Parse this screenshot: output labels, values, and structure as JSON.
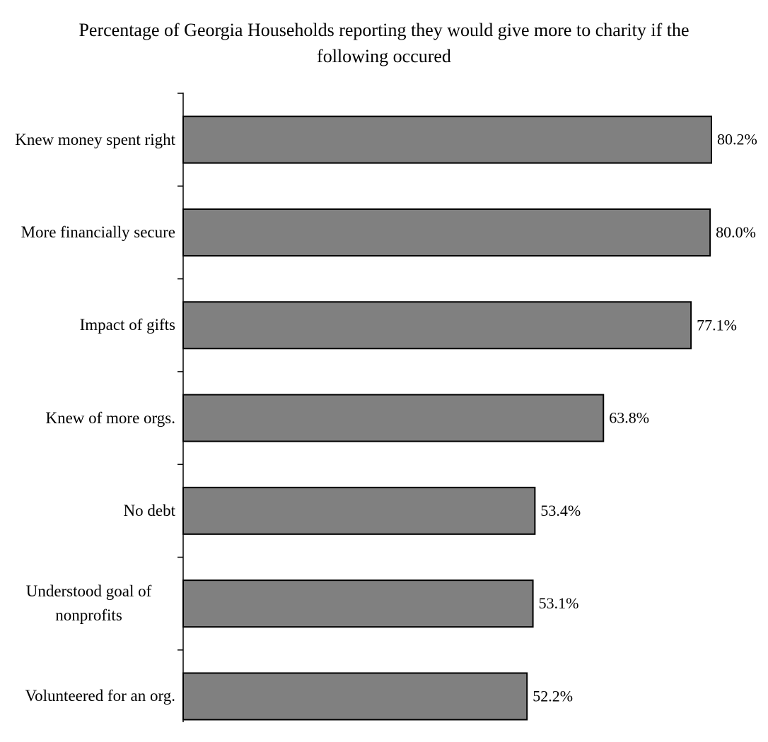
{
  "chart_data": {
    "type": "bar",
    "orientation": "horizontal",
    "title": "Percentage of Georgia Households reporting they would give more to charity if the following occured",
    "categories": [
      "Knew money spent right",
      "More financially secure",
      "Impact of gifts",
      "Knew of more orgs.",
      "No debt",
      "Understood goal of nonprofits",
      "Volunteered for an org."
    ],
    "values": [
      80.2,
      80.0,
      77.1,
      63.8,
      53.4,
      53.1,
      52.2
    ],
    "value_labels": [
      "80.2%",
      "80.0%",
      "77.1%",
      "63.8%",
      "53.4%",
      "53.1%",
      "52.2%"
    ],
    "color": "#808080"
  }
}
